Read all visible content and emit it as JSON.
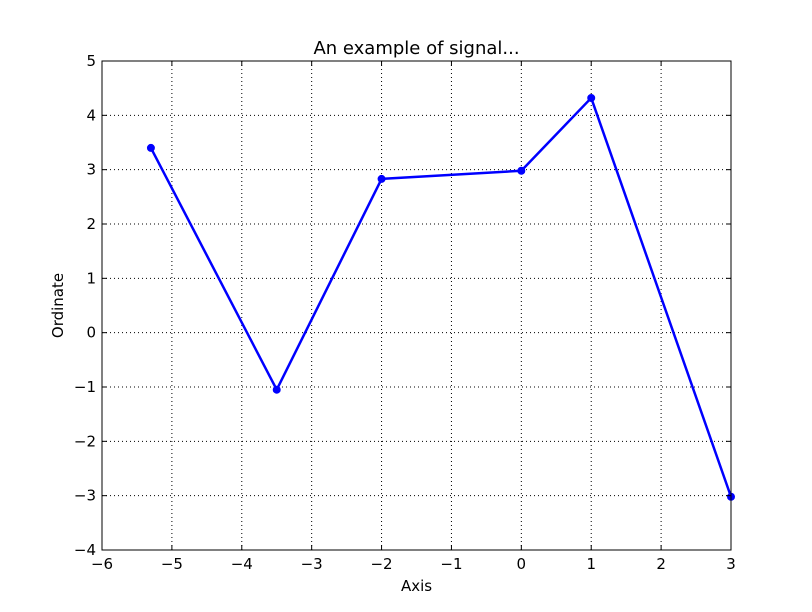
{
  "chart_data": {
    "type": "line",
    "title": "An example of signal...",
    "xlabel": "Axis",
    "ylabel": "Ordinate",
    "xlim": [
      -6,
      3
    ],
    "ylim": [
      -4,
      5
    ],
    "xticks": [
      -6,
      -5,
      -4,
      -3,
      -2,
      -1,
      0,
      1,
      2,
      3
    ],
    "yticks": [
      -4,
      -3,
      -2,
      -1,
      0,
      1,
      2,
      3,
      4,
      5
    ],
    "grid": true,
    "line_color": "#0000ff",
    "series": [
      {
        "x": [
          -5.3,
          -3.5,
          -2.0,
          0.0,
          1.0,
          3.0
        ],
        "y": [
          3.4,
          -1.05,
          2.83,
          2.98,
          4.32,
          -3.02
        ]
      }
    ]
  }
}
